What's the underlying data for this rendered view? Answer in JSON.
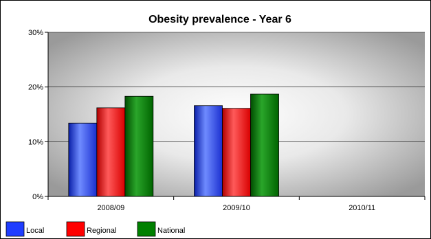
{
  "chart_data": {
    "type": "bar",
    "title": "Obesity prevalence - Year 6",
    "xlabel": "",
    "ylabel": "",
    "categories": [
      "2008/09",
      "2009/10",
      "2010/11"
    ],
    "series": [
      {
        "name": "Local",
        "values": [
          13.4,
          16.6,
          null
        ],
        "color": "#1f3dff"
      },
      {
        "name": "Regional",
        "values": [
          16.2,
          16.1,
          null
        ],
        "color": "#ff0000"
      },
      {
        "name": "National",
        "values": [
          18.3,
          18.7,
          null
        ],
        "color": "#008000"
      }
    ],
    "ylim": [
      0,
      30
    ],
    "yticks": [
      0,
      10,
      20,
      30
    ],
    "ytick_labels": [
      "0%",
      "10%",
      "20%",
      "30%"
    ],
    "grid": true,
    "legend_position": "bottom-left"
  }
}
